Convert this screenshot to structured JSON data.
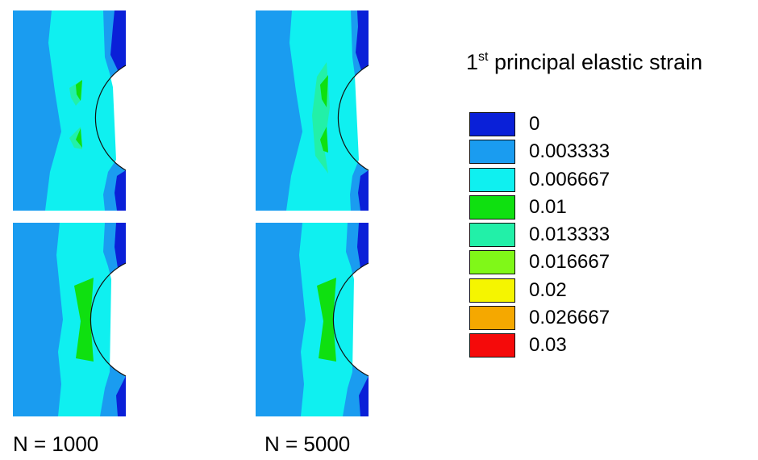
{
  "legend": {
    "title_base": "1",
    "title_sup": "st",
    "title_rest": " principal elastic strain",
    "entries": [
      {
        "label": "0",
        "color": "#0a20d8"
      },
      {
        "label": "0.003333",
        "color": "#1a9cf0"
      },
      {
        "label": "0.006667",
        "color": "#0ff0f0"
      },
      {
        "label": "0.01",
        "color": "#0fe010"
      },
      {
        "label": "0.013333",
        "color": "#22f0a8"
      },
      {
        "label": "0.016667",
        "color": "#80f818"
      },
      {
        "label": "0.02",
        "color": "#f5f500"
      },
      {
        "label": "0.026667",
        "color": "#f5a800"
      },
      {
        "label": "0.03",
        "color": "#f50a0a"
      }
    ]
  },
  "captions": {
    "left": "N = 1000",
    "right": "N = 5000"
  },
  "colors": {
    "deep_blue": "#0a20d8",
    "light_blue": "#1a9cf0",
    "cyan": "#0ff0f0",
    "green": "#0fe010",
    "mint": "#22f0a8"
  }
}
